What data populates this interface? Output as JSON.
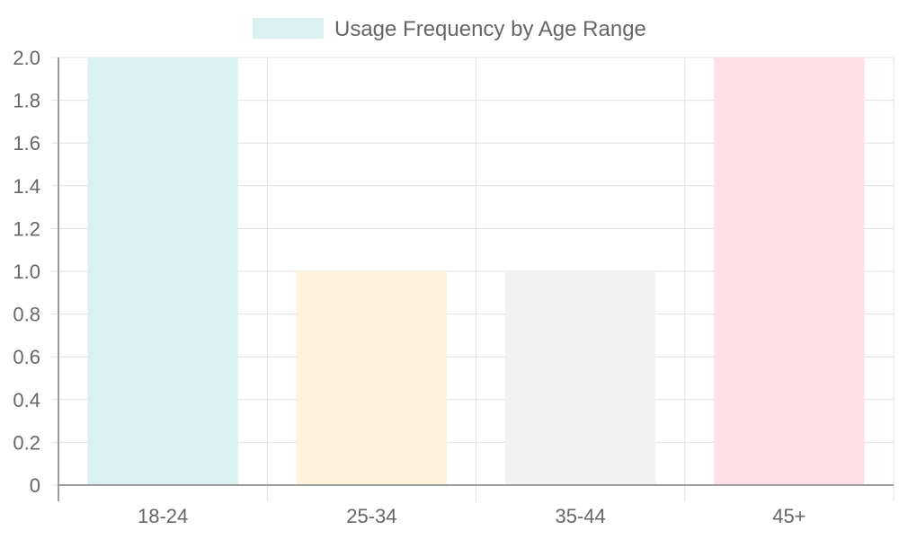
{
  "chart_data": {
    "type": "bar",
    "categories": [
      "18-24",
      "25-34",
      "35-44",
      "45+"
    ],
    "series": [
      {
        "name": "Usage Frequency by Age Range",
        "values": [
          2,
          1,
          1,
          2
        ],
        "colors": [
          "#d9f1f1",
          "#fff3de",
          "#f2f2f2",
          "#ffdfe6"
        ]
      }
    ],
    "ylim": [
      0,
      2
    ],
    "yticks": [
      "0",
      "0.2",
      "0.4",
      "0.6",
      "0.8",
      "1.0",
      "1.2",
      "1.4",
      "1.6",
      "1.8",
      "2.0"
    ],
    "grid": true,
    "legend_position": "top-center",
    "legend_swatch_color": "#d9f1f1",
    "axis_color": "#9e9e9e",
    "grid_color": "#e0e0e0",
    "text_color": "#666666"
  }
}
